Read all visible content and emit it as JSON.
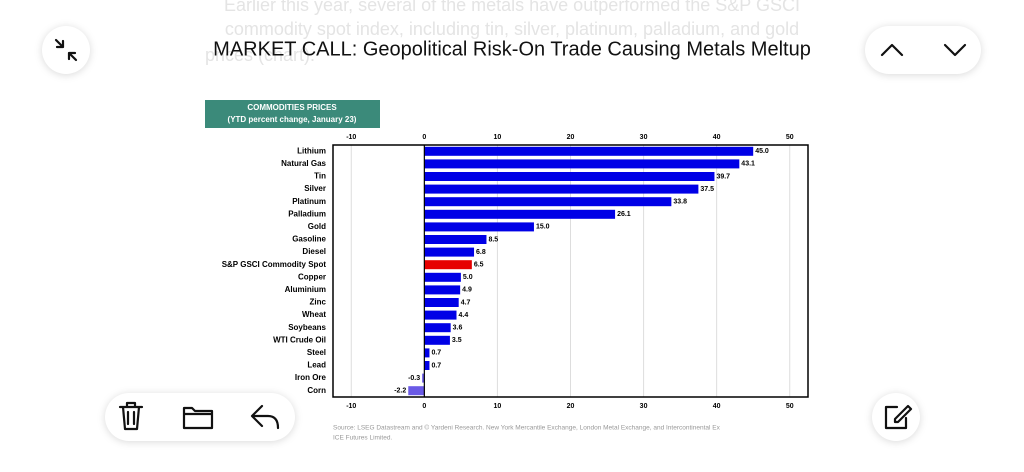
{
  "background_text": [
    "Earlier this year, several of the metals have outperformed the S&P GSCI",
    "commodity spot index, including tin, silver, platinum, palladium, and gold",
    "prices (chart)."
  ],
  "header": {
    "title": "MARKET CALL: Geopolitical Risk-On Trade Causing Metals Meltup"
  },
  "chart_data": {
    "type": "bar",
    "orientation": "horizontal",
    "title": [
      "COMMODITIES PRICES",
      "(YTD percent change, January 23)"
    ],
    "categories": [
      "Lithium",
      "Natural Gas",
      "Tin",
      "Silver",
      "Platinum",
      "Palladium",
      "Gold",
      "Gasoline",
      "Diesel",
      "S&P GSCI Commodity Spot",
      "Copper",
      "Aluminium",
      "Zinc",
      "Wheat",
      "Soybeans",
      "WTI Crude Oil",
      "Steel",
      "Lead",
      "Iron Ore",
      "Corn"
    ],
    "values": [
      45.0,
      43.1,
      39.7,
      37.5,
      33.8,
      26.1,
      15.0,
      8.5,
      6.8,
      6.5,
      5.0,
      4.9,
      4.7,
      4.4,
      3.6,
      3.5,
      0.7,
      0.7,
      -0.3,
      -2.2
    ],
    "value_labels": [
      "45.0",
      "43.1",
      "39.7",
      "37.5",
      "33.8",
      "26.1",
      "15.0",
      "8.5",
      "6.8",
      "6.5",
      "5.0",
      "4.9",
      "4.7",
      "4.4",
      "3.6",
      "3.5",
      "0.7",
      "0.7",
      "-0.3",
      "-2.2"
    ],
    "colors": [
      "#0000e6",
      "#0000e6",
      "#0000e6",
      "#0000e6",
      "#0000e6",
      "#0000e6",
      "#0000e6",
      "#0000e6",
      "#0000e6",
      "#e60000",
      "#0000e6",
      "#0000e6",
      "#0000e6",
      "#0000e6",
      "#0000e6",
      "#0000e6",
      "#0000e6",
      "#0000e6",
      "#6a5ae6",
      "#6a5ae6"
    ],
    "xlim": [
      -12.5,
      52.5
    ],
    "xticks": [
      -10,
      0,
      10,
      20,
      30,
      40,
      50
    ],
    "grid": true,
    "source": [
      "Source: LSEG Datastream and © Yardeni Research. New York Mercantile Exchange, London Metal Exchange, and Intercontinental Ex",
      "ICE Futures Limited."
    ]
  }
}
